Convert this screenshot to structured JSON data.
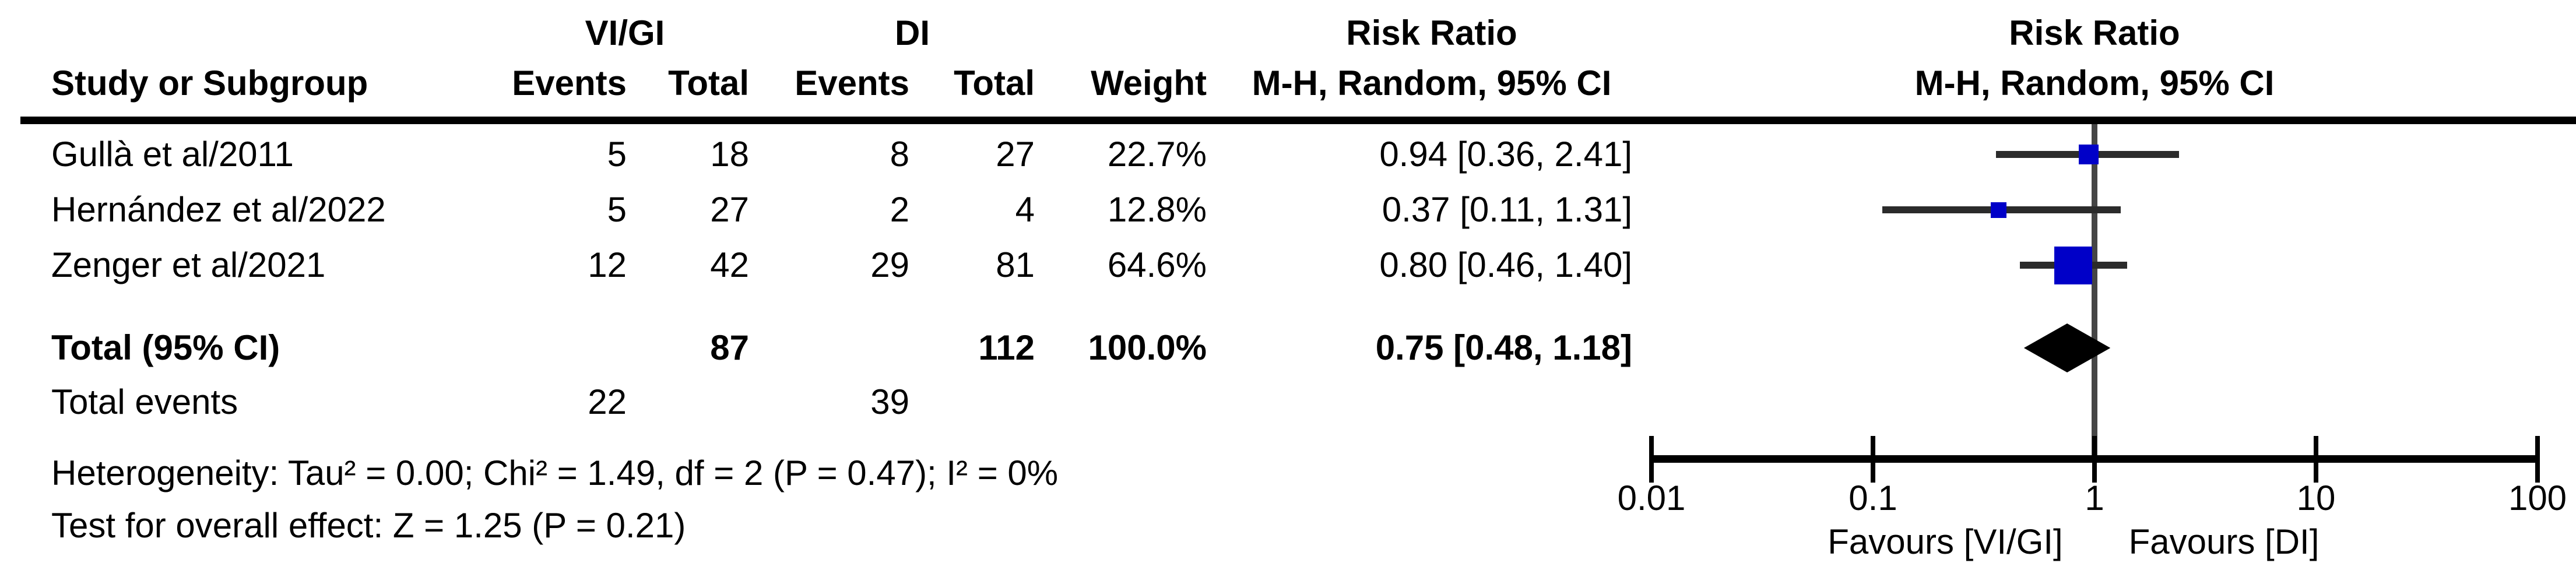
{
  "header": {
    "group1": "VI/GI",
    "group2": "DI",
    "risk_ratio_left": "Risk Ratio",
    "risk_ratio_right": "Risk Ratio",
    "study": "Study or Subgroup",
    "events1": "Events",
    "total1": "Total",
    "events2": "Events",
    "total2": "Total",
    "weight": "Weight",
    "mh_left": "M-H, Random, 95% CI",
    "mh_right": "M-H, Random, 95% CI"
  },
  "totals": {
    "label": "Total (95% CI)",
    "events_label": "Total events",
    "events1": 22,
    "events2": 39
  },
  "footer": {
    "heterogeneity": "Heterogeneity: Tau² = 0.00; Chi² = 1.49, df = 2 (P = 0.47); I² = 0%",
    "overall_effect": "Test for overall effect: Z = 1.25 (P = 0.21)"
  },
  "chart_data": {
    "type": "forest",
    "x_scale": "log",
    "x_range": [
      0.01,
      100
    ],
    "x_ticks": [
      0.01,
      0.1,
      1,
      10,
      100
    ],
    "null_line": 1,
    "effect_measure": "Risk Ratio",
    "method": "M-H, Random, 95% CI",
    "studies": [
      {
        "label": "Gullà et al/2011",
        "events1": 5,
        "total1": 18,
        "events2": 8,
        "total2": 27,
        "weight_pct": 22.7,
        "rr": 0.94,
        "ci_low": 0.36,
        "ci_high": 2.41
      },
      {
        "label": "Hernández et al/2022",
        "events1": 5,
        "total1": 27,
        "events2": 2,
        "total2": 4,
        "weight_pct": 12.8,
        "rr": 0.37,
        "ci_low": 0.11,
        "ci_high": 1.31
      },
      {
        "label": "Zenger et al/2021",
        "events1": 12,
        "total1": 42,
        "events2": 29,
        "total2": 81,
        "weight_pct": 64.6,
        "rr": 0.8,
        "ci_low": 0.46,
        "ci_high": 1.4
      }
    ],
    "total": {
      "label": "Total (95% CI)",
      "total1": 87,
      "total2": 112,
      "weight_pct": 100.0,
      "rr": 0.75,
      "ci_low": 0.48,
      "ci_high": 1.18
    },
    "favours_left": "Favours [VI/GI]",
    "favours_right": "Favours [DI]",
    "marker_color": "#0000C8",
    "diamond_color": "#000000",
    "legend_position": "none",
    "grid": false
  }
}
